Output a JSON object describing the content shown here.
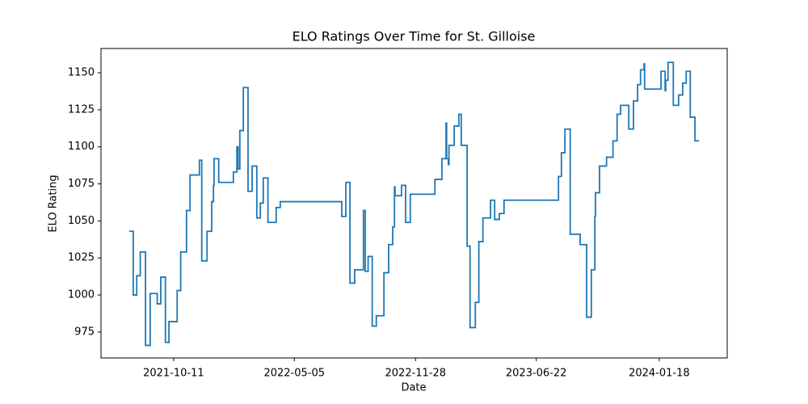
{
  "chart_data": {
    "type": "line",
    "title": "ELO Ratings Over Time for St. Gilloise",
    "x_label": "Date",
    "y_label": "ELO Rating",
    "drawstyle": "steps-post",
    "x": [
      "2021-07-27",
      "2021-08-03",
      "2021-08-09",
      "2021-08-15",
      "2021-08-24",
      "2021-09-01",
      "2021-09-13",
      "2021-09-19",
      "2021-09-27",
      "2021-10-03",
      "2021-10-17",
      "2021-10-23",
      "2021-11-02",
      "2021-11-08",
      "2021-11-24",
      "2021-11-28",
      "2021-12-07",
      "2021-12-15",
      "2021-12-18",
      "2021-12-19",
      "2021-12-27",
      "2022-01-21",
      "2022-01-27",
      "2022-01-29",
      "2022-02-01",
      "2022-02-07",
      "2022-02-15",
      "2022-02-22",
      "2022-03-02",
      "2022-03-08",
      "2022-03-13",
      "2022-03-21",
      "2022-04-04",
      "2022-04-11",
      "2022-07-25",
      "2022-08-01",
      "2022-08-08",
      "2022-08-16",
      "2022-08-31",
      "2022-09-03",
      "2022-09-08",
      "2022-09-15",
      "2022-09-22",
      "2022-10-05",
      "2022-10-13",
      "2022-10-20",
      "2022-10-23",
      "2022-10-24",
      "2022-11-04",
      "2022-11-11",
      "2022-11-19",
      "2022-12-31",
      "2023-01-12",
      "2023-01-19",
      "2023-01-20",
      "2023-01-23",
      "2023-01-24",
      "2023-02-02",
      "2023-02-10",
      "2023-02-14",
      "2023-02-24",
      "2023-03-01",
      "2023-03-10",
      "2023-03-16",
      "2023-03-23",
      "2023-04-05",
      "2023-04-12",
      "2023-04-20",
      "2023-04-28",
      "2023-07-30",
      "2023-08-04",
      "2023-08-10",
      "2023-08-19",
      "2023-09-05",
      "2023-09-16",
      "2023-09-24",
      "2023-09-30",
      "2023-10-01",
      "2023-10-08",
      "2023-10-20",
      "2023-10-31",
      "2023-11-07",
      "2023-11-13",
      "2023-11-27",
      "2023-12-05",
      "2023-12-12",
      "2023-12-17",
      "2023-12-23",
      "2023-12-24",
      "2024-01-21",
      "2024-01-28",
      "2024-01-29",
      "2024-02-02",
      "2024-02-11",
      "2024-02-20",
      "2024-02-27",
      "2024-03-04",
      "2024-03-11",
      "2024-03-19",
      "2024-03-26"
    ],
    "series": [
      {
        "name": "St. Gilloise",
        "color": "#1f77b4",
        "values": [
          1043,
          1000,
          1013,
          1029,
          966,
          1001,
          994,
          1012,
          968,
          982,
          1003,
          1029,
          1057,
          1081,
          1091,
          1023,
          1043,
          1063,
          1074,
          1092,
          1076,
          1083,
          1100,
          1085,
          1111,
          1140,
          1070,
          1087,
          1052,
          1062,
          1079,
          1049,
          1059,
          1063,
          1053,
          1076,
          1008,
          1017,
          1057,
          1016,
          1026,
          979,
          986,
          1015,
          1034,
          1046,
          1073,
          1067,
          1074,
          1049,
          1068,
          1078,
          1092,
          1116,
          1092,
          1088,
          1101,
          1114,
          1122,
          1101,
          1033,
          978,
          995,
          1036,
          1052,
          1064,
          1051,
          1055,
          1064,
          1080,
          1096,
          1112,
          1041,
          1034,
          985,
          1017,
          1053,
          1069,
          1087,
          1093,
          1104,
          1122,
          1128,
          1112,
          1131,
          1142,
          1152,
          1156,
          1139,
          1151,
          1138,
          1145,
          1157,
          1128,
          1135,
          1143,
          1151,
          1120,
          1104,
          1104
        ]
      }
    ],
    "xlim": [
      "2021-06-09",
      "2024-05-13"
    ],
    "xticks": [
      "2021-10-11",
      "2022-05-05",
      "2022-11-28",
      "2023-06-22",
      "2024-01-18"
    ],
    "ylim": [
      957.5,
      1166.4
    ],
    "yticks": [
      975,
      1000,
      1025,
      1050,
      1075,
      1100,
      1125,
      1150
    ]
  }
}
